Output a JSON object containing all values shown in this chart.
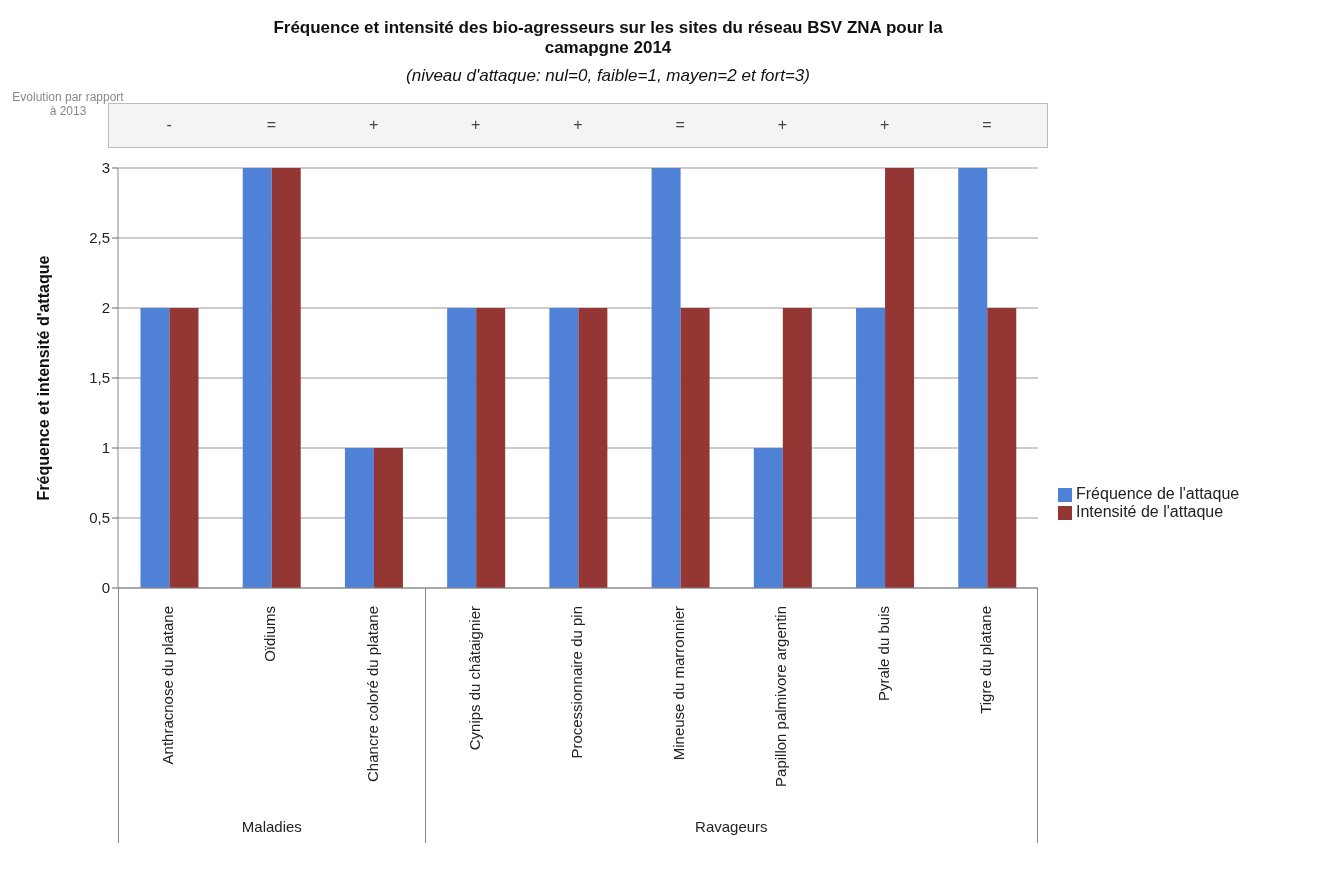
{
  "chart_data": {
    "type": "bar",
    "title": "Fréquence et intensité des bio-agresseurs sur les sites du réseau BSV ZNA pour la camapgne 2014",
    "subtitle": "(niveau d'attaque: nul=0, faible=1, mayen=2 et fort=3)",
    "ylabel": "Fréquence et intensité d'attaque",
    "categories": [
      "Anthracnose du platane",
      "Oïdiums",
      "Chancre coloré du platane",
      "Cynips du châtaignier",
      "Processionnaire du pin",
      "Mineuse du marronnier",
      "Papillon palmivore argentin",
      "Pyrale du buis",
      "Tigre du platane"
    ],
    "series": [
      {
        "name": "Fréquence de l'attaque",
        "color": "#4f81d6",
        "values": [
          2,
          3,
          1,
          2,
          2,
          3,
          1,
          2,
          3
        ]
      },
      {
        "name": "Intensité de l'attaque",
        "color": "#943634",
        "values": [
          2,
          3,
          1,
          2,
          2,
          2,
          2,
          3,
          2
        ]
      }
    ],
    "ylim": [
      0,
      3
    ],
    "yticks": [
      0,
      {
        "value": 0.5,
        "label": "0,5"
      },
      1,
      {
        "value": 1.5,
        "label": "1,5"
      },
      2,
      {
        "value": 2.5,
        "label": "2,5"
      },
      3
    ],
    "grid": "y",
    "legend": "right",
    "annotations": [
      "Evolution par rapport à 2013",
      "-",
      "=",
      "+",
      "+",
      "+",
      "=",
      "+",
      "+",
      "=",
      "Maladies",
      "Ravageurs"
    ]
  }
}
